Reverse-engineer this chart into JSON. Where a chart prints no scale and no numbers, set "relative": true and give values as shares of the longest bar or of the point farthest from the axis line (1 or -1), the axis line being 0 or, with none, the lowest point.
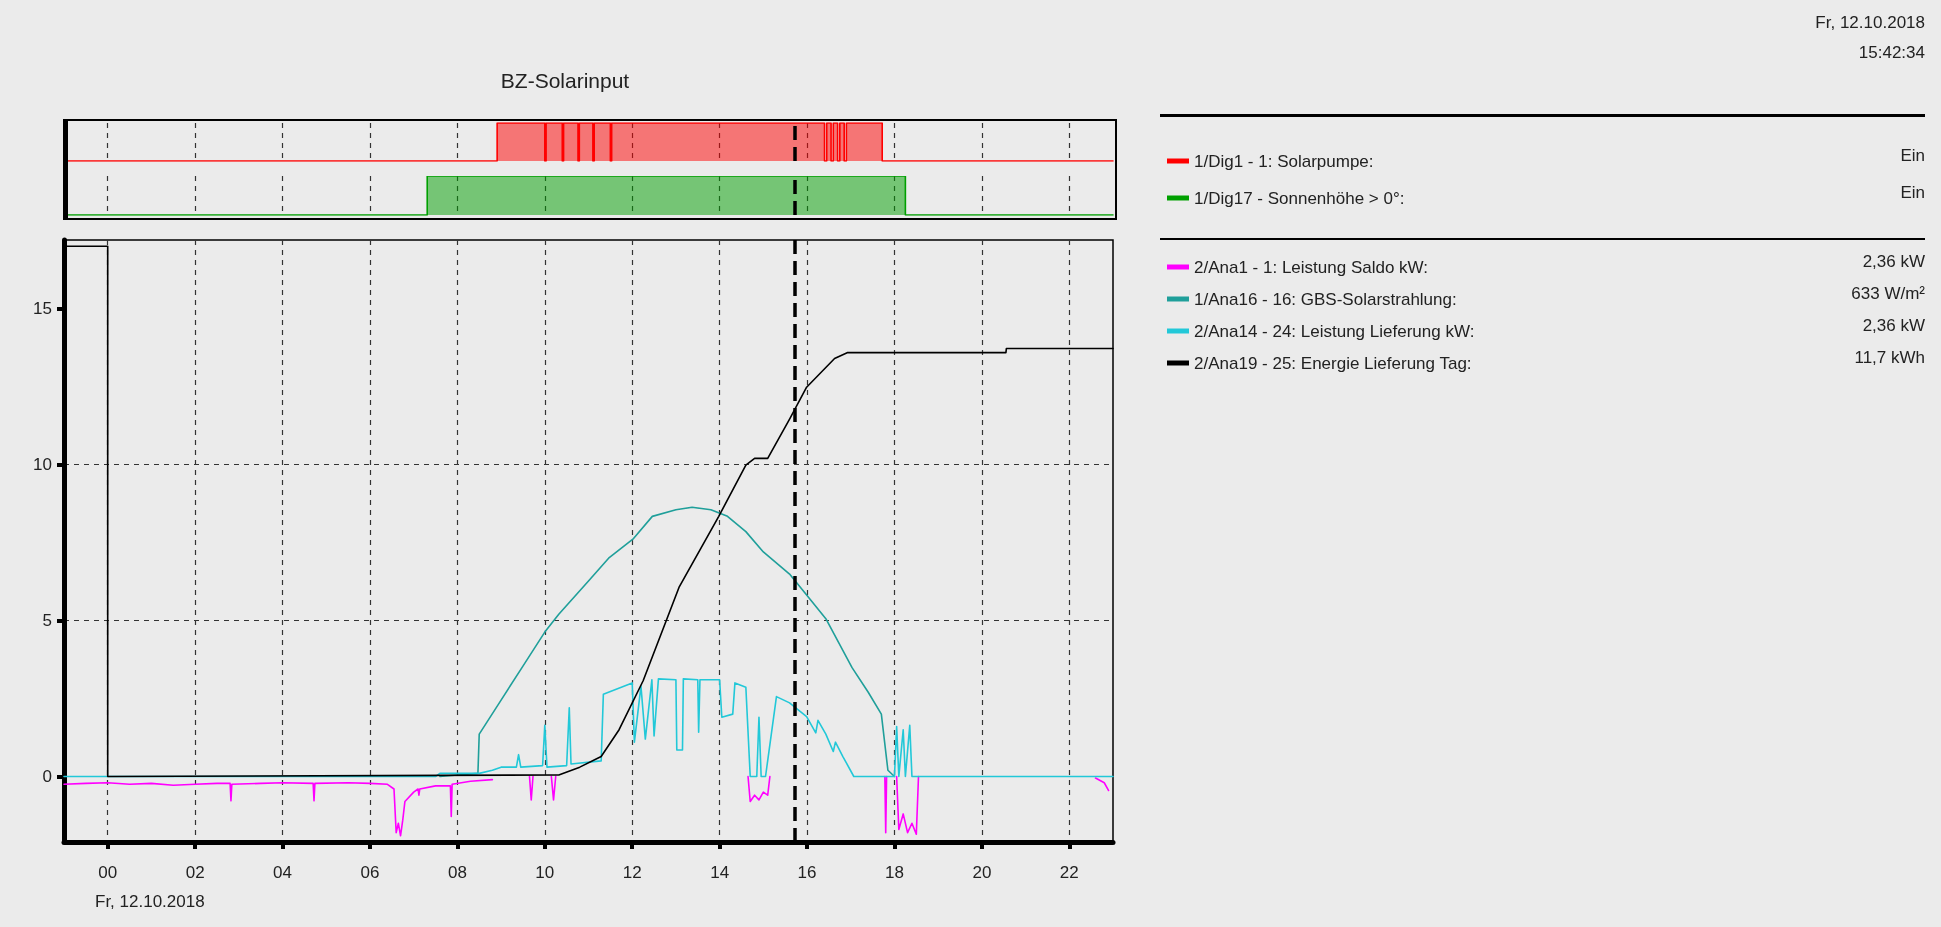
{
  "chart_data": [
    {
      "type": "other",
      "title": "BZ-Solarinput",
      "annotations": [
        "Fr, 12.10.2018",
        "15:42:34"
      ]
    },
    {
      "type": "step",
      "relative": true,
      "xlim": [
        -1,
        23
      ],
      "xticks": [
        0,
        2,
        4,
        6,
        8,
        10,
        12,
        14,
        16,
        18,
        20,
        22
      ],
      "series": [
        {
          "name": "1/Dig1 - 1: Solarpumpe:",
          "color": "#ff0000",
          "x": [
            -1,
            8.91,
            10.0,
            10.03,
            10.4,
            10.43,
            10.76,
            10.79,
            11.1,
            11.13,
            11.5,
            11.53,
            16.4,
            16.45,
            16.55,
            16.6,
            16.7,
            16.75,
            16.85,
            16.9,
            17.72,
            23
          ],
          "values": [
            0,
            1,
            0,
            1,
            0,
            1,
            0,
            1,
            0,
            1,
            0,
            1,
            0,
            1,
            0,
            1,
            0,
            1,
            0,
            1,
            0,
            0
          ]
        }
      ],
      "annotations": [
        "Ein"
      ],
      "ref_lines": [
        {
          "axis": "x",
          "value": 15.71,
          "color": "#000000",
          "line_style": "dashed"
        }
      ],
      "grid": "x",
      "legend": "right",
      "tick_labels": false,
      "marker": "none"
    },
    {
      "type": "step",
      "relative": true,
      "xlim": [
        -1,
        23
      ],
      "xticks": [
        0,
        2,
        4,
        6,
        8,
        10,
        12,
        14,
        16,
        18,
        20,
        22
      ],
      "series": [
        {
          "name": "1/Dig17 - Sonnenhöhe > 0°:",
          "color": "#00a000",
          "x": [
            -1,
            7.31,
            18.25,
            23
          ],
          "values": [
            0,
            1,
            0,
            0
          ]
        }
      ],
      "annotations": [
        "Ein"
      ],
      "ref_lines": [
        {
          "axis": "x",
          "value": 15.71,
          "color": "#000000",
          "line_style": "dashed"
        }
      ],
      "grid": "x",
      "legend": "right",
      "tick_labels": false,
      "marker": "none"
    },
    {
      "type": "line",
      "xlabel": "Fr, 12.10.2018",
      "xlim": [
        -1,
        23
      ],
      "xticks": [
        {
          "value": 0,
          "label": "00"
        },
        {
          "value": 2,
          "label": "02"
        },
        {
          "value": 4,
          "label": "04"
        },
        {
          "value": 6,
          "label": "06"
        },
        {
          "value": 8,
          "label": "08"
        },
        {
          "value": 10,
          "label": "10"
        },
        {
          "value": 12,
          "label": "12"
        },
        {
          "value": 14,
          "label": "14"
        },
        {
          "value": 16,
          "label": "16"
        },
        {
          "value": 18,
          "label": "18"
        },
        {
          "value": 20,
          "label": "20"
        },
        {
          "value": 22,
          "label": "22"
        }
      ],
      "ylim": [
        -2.1,
        17.2
      ],
      "yticks": [
        0,
        5,
        10,
        15
      ],
      "series": [
        {
          "name": "2/Ana1 - 1: Leistung Saldo kW:",
          "color": "#ff00ff",
          "x": [
            -1,
            -0.5,
            0,
            0.5,
            1,
            1.5,
            2,
            2.5,
            2.8,
            2.82,
            2.84,
            3.5,
            4,
            4.7,
            4.72,
            4.74,
            5.5,
            6,
            6.4,
            6.55,
            6.6,
            6.65,
            6.7,
            6.75,
            6.8,
            7.0,
            7.1,
            7.12,
            7.14,
            7.5,
            7.84,
            7.86,
            7.88,
            8.3,
            8.8,
            9.0,
            9.65,
            9.69,
            9.73,
            9.9,
            10.15,
            10.2,
            10.25,
            12,
            14.65,
            14.7,
            14.8,
            14.9,
            15.0,
            15.1,
            15.15,
            16,
            17.78,
            17.8,
            17.82,
            17.95,
            18.05,
            18.1,
            18.2,
            18.3,
            18.4,
            18.5,
            18.55,
            20,
            22.6,
            22.8,
            22.9
          ],
          "values": [
            -0.25,
            -0.22,
            -0.2,
            -0.25,
            -0.22,
            -0.28,
            -0.25,
            -0.22,
            -0.22,
            -0.78,
            -0.25,
            -0.22,
            -0.2,
            -0.22,
            -0.78,
            -0.22,
            -0.2,
            -0.22,
            -0.25,
            -0.4,
            -1.8,
            -1.5,
            -1.9,
            -1.4,
            -0.8,
            -0.5,
            -0.4,
            -0.6,
            -0.4,
            -0.3,
            -0.3,
            -1.28,
            -0.25,
            -0.15,
            -0.1,
            null,
            0,
            -0.75,
            0,
            null,
            0,
            -0.75,
            0,
            null,
            0,
            -0.8,
            -0.6,
            -0.75,
            -0.5,
            -0.6,
            0,
            null,
            0,
            -1.8,
            0,
            null,
            0,
            -1.7,
            -1.2,
            -1.8,
            -1.5,
            -1.85,
            0,
            null,
            -0.05,
            -0.2,
            -0.45
          ]
        },
        {
          "name": "1/Ana16 - 16: GBS-Solarstrahlung:",
          "color": "#1f9f9a",
          "x": [
            7.6,
            8.0,
            8.47,
            8.5,
            9.0,
            9.5,
            10.0,
            10.32,
            11.0,
            11.46,
            12.03,
            12.46,
            13.0,
            13.37,
            13.8,
            14.18,
            14.6,
            15.0,
            15.6,
            16.0,
            16.43,
            17.03,
            17.4,
            17.7,
            17.85,
            18.0
          ],
          "values": [
            0,
            0.05,
            0.1,
            1.36,
            2.45,
            3.54,
            4.63,
            5.2,
            6.27,
            7.0,
            7.63,
            8.34,
            8.55,
            8.63,
            8.55,
            8.34,
            7.85,
            7.2,
            6.49,
            5.8,
            5.06,
            3.49,
            2.7,
            2.0,
            0.2,
            0
          ]
        },
        {
          "name": "2/Ana14 - 24: Leistung Lieferung kW:",
          "color": "#22c8d8",
          "x": [
            -1,
            7.5,
            7.6,
            8.5,
            8.8,
            9.0,
            9.35,
            9.4,
            9.45,
            9.95,
            10.0,
            10.05,
            10.5,
            10.56,
            10.6,
            11.29,
            11.34,
            12.0,
            12.05,
            12.2,
            12.3,
            12.45,
            12.5,
            12.6,
            13.0,
            13.02,
            13.15,
            13.17,
            13.5,
            13.52,
            13.55,
            14.0,
            14.05,
            14.3,
            14.35,
            14.6,
            14.7,
            14.85,
            14.9,
            14.95,
            15.05,
            15.3,
            15.6,
            15.99,
            16.2,
            16.25,
            16.43,
            16.6,
            16.65,
            16.82,
            17.07,
            18.0,
            18.05,
            18.1,
            18.2,
            18.25,
            18.35,
            18.4,
            23
          ],
          "values": [
            0,
            0,
            0.1,
            0.1,
            0.2,
            0.3,
            0.3,
            0.7,
            0.3,
            0.35,
            1.64,
            0.3,
            0.35,
            2.2,
            0.4,
            0.5,
            2.64,
            3.0,
            1.1,
            2.9,
            1.2,
            3.1,
            1.3,
            3.13,
            3.1,
            0.85,
            0.85,
            3.13,
            3.1,
            1.42,
            3.1,
            3.1,
            1.9,
            2.0,
            3.0,
            2.86,
            0,
            0,
            1.9,
            0,
            0,
            2.56,
            2.36,
            1.92,
            1.4,
            1.8,
            1.36,
            0.8,
            1.1,
            0.64,
            0,
            0,
            1.6,
            0,
            1.5,
            0,
            1.64,
            0,
            0
          ]
        },
        {
          "name": "2/Ana19 - 25: Energie Lieferung Tag:",
          "color": "#000000",
          "x": [
            -1,
            0,
            0,
            10.32,
            10.8,
            11.29,
            11.7,
            12.25,
            13.07,
            13.98,
            14.6,
            14.8,
            15.1,
            15.61,
            15.99,
            16.63,
            16.93,
            20.55,
            20.56,
            23
          ],
          "values": [
            17,
            17,
            0,
            0.05,
            0.3,
            0.64,
            1.5,
            3.07,
            6.06,
            8.34,
            9.98,
            10.2,
            10.2,
            11.48,
            12.48,
            13.4,
            13.59,
            13.59,
            13.72,
            13.72
          ]
        }
      ],
      "annotations": [
        "2,36 kW",
        "633 W/m²",
        "2,36 kW",
        "11,7 kWh"
      ],
      "ref_lines": [
        {
          "axis": "x",
          "value": 15.71,
          "color": "#000000",
          "line_style": "dashed"
        }
      ],
      "grid": true,
      "legend": "right",
      "marker": "none"
    }
  ]
}
